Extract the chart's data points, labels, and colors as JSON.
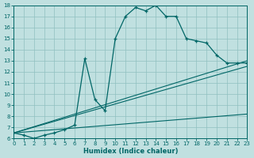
{
  "xlabel": "Humidex (Indice chaleur)",
  "bg_color": "#c0e0e0",
  "line_color": "#006666",
  "grid_color": "#90c0c0",
  "xlim": [
    0,
    23
  ],
  "ylim": [
    6,
    18
  ],
  "yticks": [
    6,
    7,
    8,
    9,
    10,
    11,
    12,
    13,
    14,
    15,
    16,
    17,
    18
  ],
  "xticks": [
    0,
    1,
    2,
    3,
    4,
    5,
    6,
    7,
    8,
    9,
    10,
    11,
    12,
    13,
    14,
    15,
    16,
    17,
    18,
    19,
    20,
    21,
    22,
    23
  ],
  "main_curve_x": [
    0,
    1,
    2,
    3,
    4,
    5,
    6,
    7,
    8,
    9,
    10,
    11,
    12,
    13,
    14,
    15,
    16,
    17,
    18,
    19,
    20,
    21,
    22,
    23
  ],
  "main_curve_y": [
    6.5,
    6.3,
    6.0,
    6.3,
    6.5,
    6.8,
    7.2,
    13.2,
    9.5,
    8.5,
    15.0,
    17.0,
    17.8,
    17.5,
    18.0,
    17.0,
    17.0,
    15.0,
    14.8,
    14.6,
    13.5,
    12.8,
    12.8,
    12.8
  ],
  "straight_lines": [
    {
      "x": [
        0,
        23
      ],
      "y": [
        6.5,
        13.0
      ]
    },
    {
      "x": [
        0,
        23
      ],
      "y": [
        6.5,
        12.5
      ]
    },
    {
      "x": [
        0,
        23
      ],
      "y": [
        6.5,
        8.2
      ]
    }
  ]
}
